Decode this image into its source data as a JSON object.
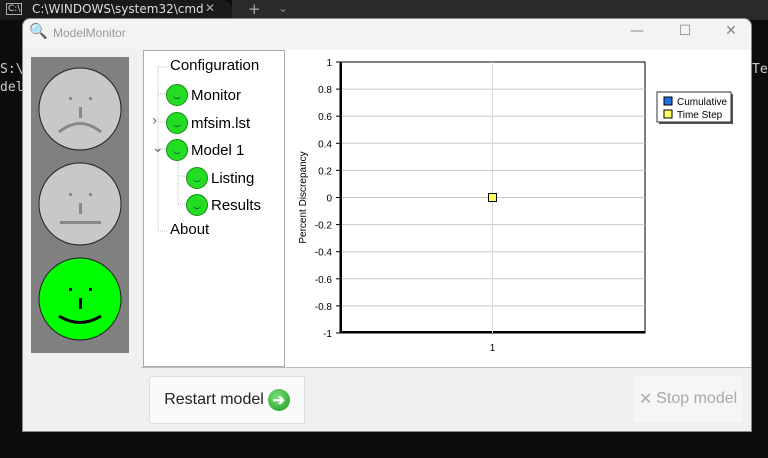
{
  "terminal": {
    "tab_title": "C:\\WINDOWS\\system32\\cmd",
    "line1": "S:\\",
    "line2": "del",
    "right_text": "Te"
  },
  "window": {
    "title": "ModelMonitor"
  },
  "status_faces": [
    {
      "state": "sad",
      "active": false
    },
    {
      "state": "neutral",
      "active": false
    },
    {
      "state": "happy",
      "active": true
    }
  ],
  "tree": [
    {
      "label": "Configuration",
      "icon": "none",
      "expander": ""
    },
    {
      "label": "Monitor",
      "icon": "smiley-green-icon",
      "expander": ""
    },
    {
      "label": "mfsim.lst",
      "icon": "smiley-green-icon",
      "expander": "›"
    },
    {
      "label": "Model 1",
      "icon": "smiley-green-icon",
      "expander": "⌄"
    },
    {
      "label": "Listing",
      "icon": "smiley-green-icon",
      "expander": ""
    },
    {
      "label": "Results",
      "icon": "smiley-green-icon",
      "expander": ""
    },
    {
      "label": "About",
      "icon": "none",
      "expander": ""
    }
  ],
  "buttons": {
    "restart": "Restart model",
    "stop": "Stop model"
  },
  "colors": {
    "face_active": "#00ff00",
    "face_inactive": "#c8c8c8",
    "cumulative": "#1e6fd9",
    "time_step": "#ffff66"
  },
  "chart_data": {
    "type": "scatter",
    "title": "",
    "xlabel": "",
    "ylabel": "Percent Discrepancy",
    "ylim": [
      -1,
      1
    ],
    "yticks": [
      "1",
      "0.8",
      "0.6",
      "0.4",
      "0.2",
      "0",
      "-0.2",
      "-0.4",
      "-0.6",
      "-0.8",
      "-1"
    ],
    "xticks": [
      "1"
    ],
    "grid": true,
    "legend_placement": "right",
    "series": [
      {
        "name": "Cumulative",
        "x": [],
        "y": []
      },
      {
        "name": "Time Step",
        "x": [
          1
        ],
        "y": [
          0
        ]
      }
    ]
  }
}
